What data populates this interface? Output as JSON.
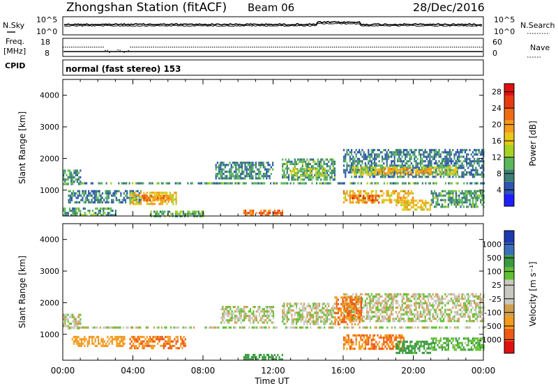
{
  "header": {
    "station": "Zhongshan Station (fitACF)",
    "beam": "Beam 06",
    "date": "28/Dec/2016"
  },
  "strip_labels": {
    "nsky": "N.Sky",
    "nsearch": "N.Search",
    "freq_line1": "Freq.",
    "freq_line2": "[MHz]",
    "nave": "Nave",
    "cpid": "CPID",
    "cpid_text": "normal (fast stereo) 153",
    "noise_ticks_left": [
      "10^5",
      "10^0"
    ],
    "noise_ticks_right": [
      "10^5",
      "10^0"
    ],
    "freq_ticks": [
      "18",
      "8"
    ],
    "nave_ticks": [
      "60",
      "0"
    ]
  },
  "colors": {
    "power_scale": [
      "#1e1eff",
      "#2e56b0",
      "#3d7f74",
      "#5cb85c",
      "#a8d224",
      "#e8c81a",
      "#f59a1a",
      "#f06a14",
      "#e83a10",
      "#e01010"
    ],
    "velocity_scale": [
      "#e01010",
      "#f05a14",
      "#f59a1a",
      "#d0a050",
      "#c8c8c0",
      "#c8c8c0",
      "#60c030",
      "#3a9a40",
      "#3a70b8",
      "#1e3ab0"
    ],
    "gray": "#c8c8c0"
  },
  "chart_data": [
    {
      "type": "heatmap",
      "name": "power",
      "ylabel": "Slant Range [km]",
      "xlabel": "Time UT",
      "ylim": [
        180,
        4500
      ],
      "y_ticks": [
        "1000",
        "2000",
        "3000",
        "4000"
      ],
      "x_ticks": [
        "00:00",
        "04:00",
        "08:00",
        "12:00",
        "16:00",
        "20:00",
        "00:00"
      ],
      "colorbar": {
        "label": "Power [dB]",
        "ticks": [
          "4",
          "8",
          "12",
          "16",
          "20",
          "24",
          "28"
        ],
        "range": [
          0,
          30
        ]
      },
      "regions": [
        {
          "t": [
            0.0,
            1.0
          ],
          "r": [
            1200,
            1650
          ],
          "value": 8
        },
        {
          "t": [
            0.0,
            24.0
          ],
          "r": [
            1180,
            1250
          ],
          "value": 9
        },
        {
          "t": [
            0.3,
            4.5
          ],
          "r": [
            600,
            1000
          ],
          "value": 7
        },
        {
          "t": [
            3.8,
            6.5
          ],
          "r": [
            550,
            950
          ],
          "value": 17
        },
        {
          "t": [
            4.5,
            6.0
          ],
          "r": [
            650,
            850
          ],
          "value": 22
        },
        {
          "t": [
            0.0,
            3.0
          ],
          "r": [
            200,
            450
          ],
          "value": 9
        },
        {
          "t": [
            5.0,
            8.0
          ],
          "r": [
            200,
            350
          ],
          "value": 10
        },
        {
          "t": [
            10.3,
            12.5
          ],
          "r": [
            230,
            380
          ],
          "value": 22
        },
        {
          "t": [
            8.7,
            12.0
          ],
          "r": [
            1350,
            1900
          ],
          "value": 8
        },
        {
          "t": [
            12.5,
            15.5
          ],
          "r": [
            1300,
            2000
          ],
          "value": 9
        },
        {
          "t": [
            13.0,
            15.0
          ],
          "r": [
            1450,
            1700
          ],
          "value": 14
        },
        {
          "t": [
            16.0,
            24.0
          ],
          "r": [
            1400,
            2300
          ],
          "value": 7
        },
        {
          "t": [
            16.5,
            22.5
          ],
          "r": [
            1500,
            1750
          ],
          "value": 14
        },
        {
          "t": [
            18.0,
            21.0
          ],
          "r": [
            1550,
            1700
          ],
          "value": 20
        },
        {
          "t": [
            16.0,
            20.0
          ],
          "r": [
            600,
            1000
          ],
          "value": 18
        },
        {
          "t": [
            16.5,
            18.0
          ],
          "r": [
            600,
            850
          ],
          "value": 24
        },
        {
          "t": [
            19.0,
            21.0
          ],
          "r": [
            400,
            700
          ],
          "value": 17
        },
        {
          "t": [
            21.0,
            24.0
          ],
          "r": [
            500,
            1000
          ],
          "value": 9
        }
      ]
    },
    {
      "type": "heatmap",
      "name": "velocity",
      "ylabel": "Slant Range [km]",
      "xlabel": "Time UT",
      "ylim": [
        180,
        4500
      ],
      "y_ticks": [
        "1000",
        "2000",
        "3000",
        "4000"
      ],
      "x_ticks": [
        "00:00",
        "04:00",
        "08:00",
        "12:00",
        "16:00",
        "20:00",
        "00:00"
      ],
      "colorbar": {
        "label": "Velocity [m s⁻¹]",
        "ticks": [
          "1000",
          "500",
          "100",
          "25",
          "-25",
          "-100",
          "-500",
          "-1000"
        ]
      },
      "regions": [
        {
          "t": [
            0.0,
            24.0
          ],
          "r": [
            1180,
            1250
          ],
          "value": 0
        },
        {
          "t": [
            0.0,
            1.0
          ],
          "r": [
            1200,
            1650
          ],
          "value": 0
        },
        {
          "t": [
            3.8,
            7.0
          ],
          "r": [
            550,
            950
          ],
          "value": -300
        },
        {
          "t": [
            0.5,
            3.5
          ],
          "r": [
            600,
            950
          ],
          "value": -150
        },
        {
          "t": [
            10.3,
            12.5
          ],
          "r": [
            230,
            380
          ],
          "value": 200
        },
        {
          "t": [
            9.0,
            12.0
          ],
          "r": [
            1350,
            1900
          ],
          "value": 0
        },
        {
          "t": [
            12.5,
            15.5
          ],
          "r": [
            1300,
            2000
          ],
          "value": 0
        },
        {
          "t": [
            16.0,
            24.0
          ],
          "r": [
            1400,
            2300
          ],
          "value": 0
        },
        {
          "t": [
            15.5,
            17.0
          ],
          "r": [
            1300,
            2200
          ],
          "value": -300
        },
        {
          "t": [
            16.0,
            19.5
          ],
          "r": [
            550,
            1000
          ],
          "value": -300
        },
        {
          "t": [
            19.0,
            21.0
          ],
          "r": [
            400,
            800
          ],
          "value": 150
        },
        {
          "t": [
            21.0,
            24.0
          ],
          "r": [
            500,
            900
          ],
          "value": 80
        }
      ]
    }
  ]
}
